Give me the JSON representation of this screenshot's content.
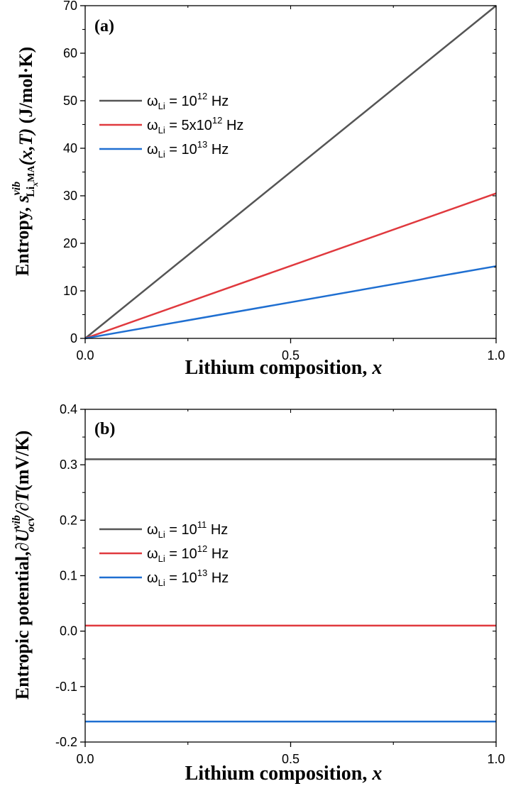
{
  "chart_data": [
    {
      "type": "line",
      "panel_label": "(a)",
      "xlabel": {
        "prefix": "Lithium composition, ",
        "var": "x"
      },
      "ylabel": {
        "prefix": "Entropy,  ",
        "s": "s",
        "sup": "vib",
        "sub_li": "Li",
        "sub_x": "x",
        "sub_ma": "MA",
        "args": "(x,T)",
        "unit": "  (J/mol·K)"
      },
      "xlim": [
        0,
        1
      ],
      "ylim": [
        0,
        70
      ],
      "xticks": [
        0.0,
        0.5,
        1.0
      ],
      "xtick_labels": [
        "0.0",
        "0.5",
        "1.0"
      ],
      "yticks": [
        0,
        10,
        20,
        30,
        40,
        50,
        60,
        70
      ],
      "ytick_labels": [
        "0",
        "10",
        "20",
        "30",
        "40",
        "50",
        "60",
        "70"
      ],
      "legend_position": "upper-left",
      "series": [
        {
          "omega": "ω",
          "sub": "Li",
          "eq": " = 10",
          "sup": "12",
          "unit": " Hz",
          "color": "#555555",
          "x": [
            0,
            1
          ],
          "y": [
            0,
            70
          ]
        },
        {
          "omega": "ω",
          "sub": "Li",
          "eq": " = 5x10",
          "sup": "12",
          "unit": " Hz",
          "color": "#e0393e",
          "x": [
            0,
            1
          ],
          "y": [
            0,
            30.5
          ]
        },
        {
          "omega": "ω",
          "sub": "Li",
          "eq": " = 10",
          "sup": "13",
          "unit": " Hz",
          "color": "#1f6fd1",
          "x": [
            0,
            1
          ],
          "y": [
            0,
            15.2
          ]
        }
      ]
    },
    {
      "type": "line",
      "panel_label": "(b)",
      "xlabel": {
        "prefix": "Lithium composition, ",
        "var": "x"
      },
      "ylabel": {
        "prefix": "Entropic potential,",
        "d1": "∂U",
        "sup": "vib",
        "sub": "ocv",
        "d2": "/∂T",
        "unit": "(mV/K)"
      },
      "xlim": [
        0,
        1
      ],
      "ylim": [
        -0.2,
        0.4
      ],
      "xticks": [
        0.0,
        0.5,
        1.0
      ],
      "xtick_labels": [
        "0.0",
        "0.5",
        "1.0"
      ],
      "yticks": [
        -0.2,
        -0.1,
        0.0,
        0.1,
        0.2,
        0.3,
        0.4
      ],
      "ytick_labels": [
        "-0.2",
        "-0.1",
        "0.0",
        "0.1",
        "0.2",
        "0.3",
        "0.4"
      ],
      "legend_position": "center-left",
      "series": [
        {
          "omega": "ω",
          "sub": "Li",
          "eq": " = 10",
          "sup": "11",
          "unit": " Hz",
          "color": "#555555",
          "x": [
            0,
            1
          ],
          "y": [
            0.31,
            0.31
          ]
        },
        {
          "omega": "ω",
          "sub": "Li",
          "eq": " = 10",
          "sup": "12",
          "unit": " Hz",
          "color": "#e0393e",
          "x": [
            0,
            1
          ],
          "y": [
            0.01,
            0.01
          ]
        },
        {
          "omega": "ω",
          "sub": "Li",
          "eq": " = 10",
          "sup": "13",
          "unit": " Hz",
          "color": "#1f6fd1",
          "x": [
            0,
            1
          ],
          "y": [
            -0.163,
            -0.163
          ]
        }
      ]
    }
  ]
}
